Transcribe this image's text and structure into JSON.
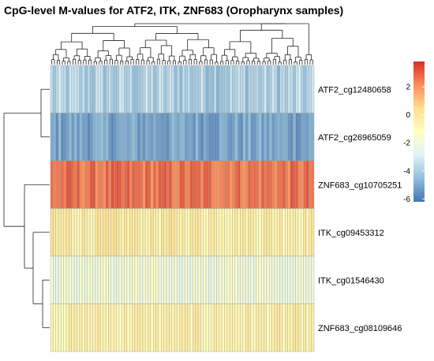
{
  "chart_data": {
    "type": "heatmap",
    "title": "CpG-level M-values for ATF2, ITK, ZNF683 (Oropharynx samples)",
    "rows": [
      {
        "name": "ATF2_cg12480658",
        "mean": -3.9,
        "spread": 0.9
      },
      {
        "name": "ATF2_cg26965059",
        "mean": -5.1,
        "spread": 0.7
      },
      {
        "name": "ZNF683_cg10705251",
        "mean": 2.6,
        "spread": 0.7
      },
      {
        "name": "ITK_cg09453312",
        "mean": -0.3,
        "spread": 0.8
      },
      {
        "name": "ITK_cg01546430",
        "mean": -1.9,
        "spread": 0.6
      },
      {
        "name": "ZNF683_cg08109646",
        "mean": -0.6,
        "spread": 0.7
      }
    ],
    "n_samples": 100,
    "colorbar": {
      "ticks": [
        2,
        0,
        -2,
        -4,
        -6
      ],
      "min": -6.2,
      "max": 3.8,
      "colors": [
        "#4575b4",
        "#91bfdb",
        "#e0f3f8",
        "#ffffbf",
        "#fee090",
        "#fc8d59",
        "#d73027"
      ]
    },
    "row_dendrogram": true,
    "column_dendrogram": true
  }
}
